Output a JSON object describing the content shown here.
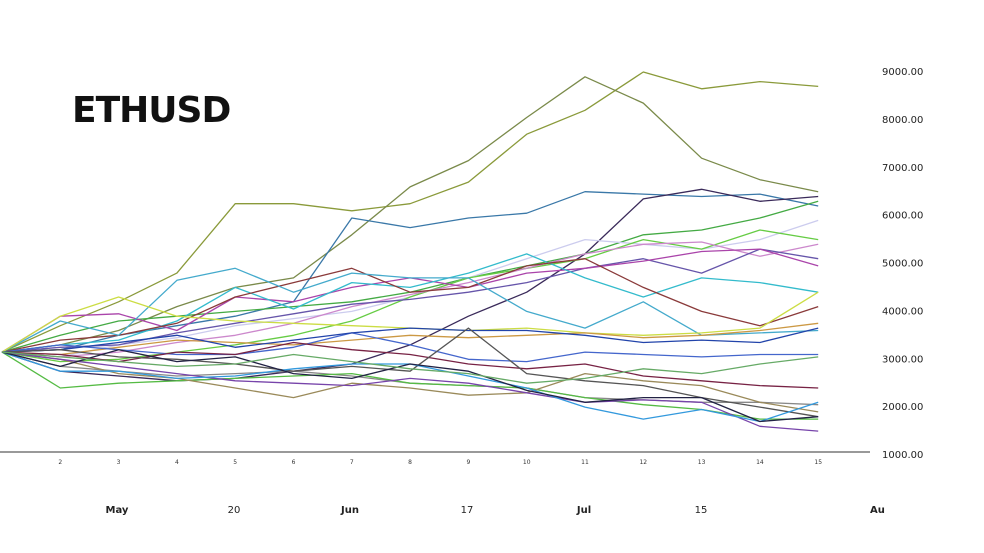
{
  "chart_data": {
    "type": "line",
    "title": "ETHUSD",
    "ylim": [
      1000,
      9000
    ],
    "yticks": [
      "9000.00",
      "8000.00",
      "7000.00",
      "6000.00",
      "5000.00",
      "4000.00",
      "3000.00",
      "2000.00",
      "1000.00"
    ],
    "x": [
      0,
      1,
      2,
      3,
      4,
      5,
      6,
      7,
      8,
      9,
      10,
      11,
      12,
      13,
      14
    ],
    "xticks": [
      "2",
      "3",
      "4",
      "5",
      "6",
      "7",
      "8",
      "9",
      "10",
      "11",
      "12",
      "13",
      "14",
      "15"
    ],
    "date_labels": [
      "May",
      "20",
      "Jun",
      "17",
      "Jul",
      "15",
      "Au"
    ],
    "bold_date_labels": [
      "May",
      "Jun",
      "Jul",
      "Au"
    ],
    "grid": false,
    "legend": "none",
    "series": [
      {
        "color": "#8a9a3a",
        "values": [
          3150,
          3700,
          4200,
          4800,
          6250,
          6250,
          6100,
          6250,
          6700,
          7700,
          8200,
          9000,
          8650,
          8800,
          8700
        ]
      },
      {
        "color": "#7a8a4a",
        "values": [
          3150,
          3300,
          3600,
          4100,
          4500,
          4700,
          5600,
          6600,
          7150,
          8050,
          8900,
          8350,
          7200,
          6750,
          6500
        ]
      },
      {
        "color": "#3a78a8",
        "values": [
          3150,
          3200,
          3500,
          3700,
          3900,
          4200,
          5950,
          5750,
          5950,
          6050,
          6500,
          6450,
          6400,
          6450,
          6200
        ]
      },
      {
        "color": "#3a2a5a",
        "values": [
          3150,
          2750,
          2650,
          2550,
          2600,
          2750,
          2900,
          3300,
          3900,
          4400,
          5200,
          6350,
          6550,
          6300,
          6400
        ]
      },
      {
        "color": "#44aa44",
        "values": [
          3150,
          3500,
          3800,
          3900,
          4000,
          4100,
          4200,
          4400,
          4700,
          4950,
          5200,
          5600,
          5700,
          5950,
          6300
        ]
      },
      {
        "color": "#ccccee",
        "values": [
          3150,
          3050,
          3300,
          3450,
          3700,
          3850,
          4000,
          4300,
          4700,
          5100,
          5500,
          5400,
          5300,
          5500,
          5900
        ]
      },
      {
        "color": "#66cc44",
        "values": [
          3150,
          2950,
          3000,
          3150,
          3300,
          3500,
          3800,
          4300,
          4700,
          4900,
          5100,
          5500,
          5300,
          5700,
          5500
        ]
      },
      {
        "color": "#cc88cc",
        "values": [
          3150,
          3050,
          3150,
          3350,
          3500,
          3750,
          4100,
          4350,
          4600,
          4900,
          5200,
          5400,
          5450,
          5150,
          5400
        ]
      },
      {
        "color": "#6655aa",
        "values": [
          3150,
          3250,
          3300,
          3550,
          3750,
          3950,
          4150,
          4250,
          4400,
          4600,
          4900,
          5100,
          4800,
          5300,
          5100
        ]
      },
      {
        "color": "#aa44aa",
        "values": [
          3150,
          3900,
          3950,
          3600,
          4300,
          4200,
          4500,
          4700,
          4500,
          4800,
          4900,
          5050,
          5250,
          5300,
          4950
        ]
      },
      {
        "color": "#33bbcc",
        "values": [
          3150,
          3300,
          3400,
          3800,
          4500,
          4050,
          4600,
          4500,
          4800,
          5200,
          4700,
          4300,
          4700,
          4600,
          4400
        ]
      },
      {
        "color": "#8a3a3a",
        "values": [
          3150,
          3400,
          3500,
          3750,
          4300,
          4600,
          4900,
          4400,
          4500,
          4950,
          5100,
          4500,
          4000,
          3700,
          4100
        ]
      },
      {
        "color": "#44aacc",
        "values": [
          3150,
          3800,
          3500,
          4650,
          4900,
          4400,
          4800,
          4700,
          4700,
          4000,
          3650,
          4200,
          3500,
          3550,
          3600
        ]
      },
      {
        "color": "#ccdd44",
        "values": [
          3150,
          3900,
          4300,
          3900,
          3800,
          3750,
          3700,
          3650,
          3600,
          3650,
          3550,
          3500,
          3550,
          3650,
          4400
        ]
      },
      {
        "color": "#cc9944",
        "values": [
          3150,
          3100,
          3250,
          3400,
          3350,
          3300,
          3400,
          3500,
          3450,
          3500,
          3550,
          3450,
          3500,
          3600,
          3750
        ]
      },
      {
        "color": "#4466cc",
        "values": [
          3150,
          3300,
          3200,
          3100,
          3100,
          3250,
          3550,
          3300,
          3000,
          2950,
          3150,
          3100,
          3050,
          3100,
          3100
        ]
      },
      {
        "color": "#772244",
        "values": [
          3150,
          3100,
          2950,
          3150,
          3100,
          3350,
          3200,
          3100,
          2900,
          2800,
          2900,
          2650,
          2550,
          2450,
          2400
        ]
      },
      {
        "color": "#888888",
        "values": [
          3150,
          2850,
          2750,
          2650,
          2700,
          2750,
          2650,
          2500,
          2450,
          2400,
          2200,
          2150,
          2100,
          2100,
          2050
        ]
      },
      {
        "color": "#2244aa",
        "values": [
          3150,
          3200,
          3350,
          3500,
          3250,
          3400,
          3550,
          3650,
          3600,
          3600,
          3500,
          3350,
          3400,
          3350,
          3650
        ]
      },
      {
        "color": "#55bb44",
        "values": [
          3150,
          2400,
          2500,
          2550,
          2600,
          2650,
          2700,
          2500,
          2450,
          2400,
          2200,
          2050,
          1950,
          1750,
          1750
        ]
      },
      {
        "color": "#555555",
        "values": [
          3150,
          3200,
          3050,
          3000,
          2900,
          2750,
          2850,
          2750,
          3650,
          2700,
          2550,
          2450,
          2200,
          2000,
          1800
        ]
      },
      {
        "color": "#9a8a5a",
        "values": [
          3150,
          3000,
          2700,
          2600,
          2400,
          2200,
          2500,
          2400,
          2250,
          2300,
          2700,
          2550,
          2450,
          2100,
          1900
        ]
      },
      {
        "color": "#7744aa",
        "values": [
          3150,
          3000,
          2850,
          2700,
          2550,
          2500,
          2450,
          2600,
          2500,
          2300,
          2100,
          2150,
          2100,
          1600,
          1500
        ]
      },
      {
        "color": "#3399dd",
        "values": [
          3150,
          2750,
          2750,
          2600,
          2650,
          2800,
          2900,
          2900,
          2650,
          2400,
          2000,
          1750,
          1950,
          1700,
          2100
        ]
      },
      {
        "color": "#222244",
        "values": [
          3150,
          2850,
          3200,
          2950,
          3050,
          2700,
          2600,
          2900,
          2750,
          2350,
          2100,
          2200,
          2200,
          1700,
          1800
        ]
      },
      {
        "color": "#66aa66",
        "values": [
          3150,
          3050,
          2950,
          2850,
          2900,
          3100,
          2950,
          2800,
          2700,
          2500,
          2600,
          2800,
          2700,
          2900,
          3050
        ]
      }
    ]
  }
}
